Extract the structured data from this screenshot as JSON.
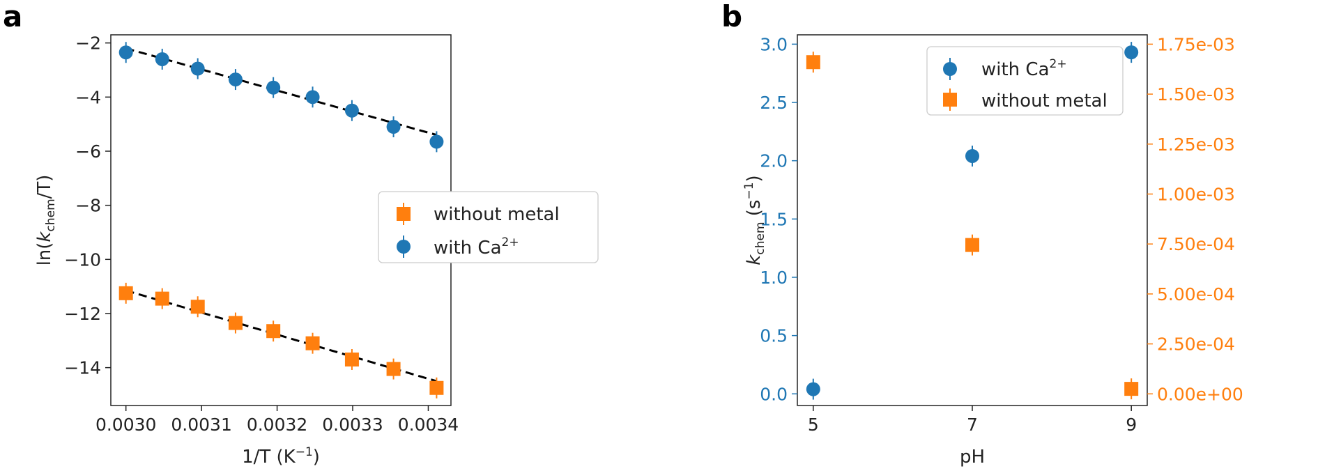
{
  "colors": {
    "ca": "#1f77b4",
    "metal_free": "#ff7f0e",
    "fit": "#000000",
    "axes": "#222222"
  },
  "chart_data": [
    {
      "panel": "a",
      "type": "scatter",
      "xlabel_prefix": "1/T (K",
      "xlabel_sup": "−1",
      "xlabel_suffix": ")",
      "ylabel_prefix": "ln(",
      "ylabel_k": "k",
      "ylabel_sub": "chem",
      "ylabel_suffix": "/T)",
      "xlim": [
        0.00298,
        0.00343
      ],
      "ylim": [
        -15.4,
        -1.7
      ],
      "xticks": [
        0.003,
        0.0031,
        0.0032,
        0.0033,
        0.0034
      ],
      "xtick_labels": [
        "0.0030",
        "0.0031",
        "0.0032",
        "0.0033",
        "0.0034"
      ],
      "yticks": [
        -14,
        -12,
        -10,
        -8,
        -6,
        -4,
        -2
      ],
      "ytick_labels": [
        "−14",
        "−12",
        "−10",
        "−8",
        "−6",
        "−4",
        "−2"
      ],
      "legend": {
        "position": "center-right"
      },
      "series": [
        {
          "name": "without metal",
          "marker": "square",
          "color": "#ff7f0e",
          "x": [
            0.003,
            0.003048,
            0.003095,
            0.003145,
            0.003195,
            0.003247,
            0.003299,
            0.003354,
            0.003411
          ],
          "y": [
            -11.25,
            -11.45,
            -11.75,
            -12.35,
            -12.65,
            -13.1,
            -13.7,
            -14.05,
            -14.75
          ],
          "fit": {
            "x": [
              0.003,
              0.003411
            ],
            "y": [
              -11.15,
              -14.5
            ]
          }
        },
        {
          "name_prefix": "with Ca",
          "name_sup": "2+",
          "marker": "circle",
          "color": "#1f77b4",
          "x": [
            0.003,
            0.003048,
            0.003095,
            0.003145,
            0.003195,
            0.003247,
            0.003299,
            0.003354,
            0.003411
          ],
          "y": [
            -2.35,
            -2.6,
            -2.95,
            -3.35,
            -3.65,
            -4.0,
            -4.5,
            -5.1,
            -5.65
          ],
          "fit": {
            "x": [
              0.003,
              0.003411
            ],
            "y": [
              -2.2,
              -5.4
            ]
          }
        }
      ]
    },
    {
      "panel": "b",
      "type": "scatter",
      "xlabel": "pH",
      "ylabel_k": "k",
      "ylabel_sub": "chem",
      "ylabel_unit_prefix": " (s",
      "ylabel_unit_sup": "−1",
      "ylabel_unit_suffix": ")",
      "xlim": [
        4.8,
        9.2
      ],
      "ylim_left": [
        -0.1,
        3.08
      ],
      "ylim_right": [
        -5.83e-05,
        0.0017967
      ],
      "xticks": [
        5,
        7,
        9
      ],
      "xtick_labels": [
        "5",
        "7",
        "9"
      ],
      "yticks_left": [
        0.0,
        0.5,
        1.0,
        1.5,
        2.0,
        2.5,
        3.0
      ],
      "ytick_labels_left": [
        "0.0",
        "0.5",
        "1.0",
        "1.5",
        "2.0",
        "2.5",
        "3.0"
      ],
      "yticks_right": [
        0,
        0.00025,
        0.0005,
        0.00075,
        0.001,
        0.00125,
        0.0015,
        0.00175
      ],
      "ytick_labels_right": [
        "0.00e+00",
        "2.50e-04",
        "5.00e-04",
        "7.50e-04",
        "1.00e-03",
        "1.25e-03",
        "1.50e-03",
        "1.75e-03"
      ],
      "legend": {
        "position": "top-center"
      },
      "series": [
        {
          "name_prefix": "with Ca",
          "name_sup": "2+",
          "marker": "circle",
          "color": "#1f77b4",
          "axis": "left",
          "x": [
            5,
            7,
            9
          ],
          "y": [
            0.04,
            2.04,
            2.93
          ]
        },
        {
          "name": "without metal",
          "marker": "square",
          "color": "#ff7f0e",
          "axis": "right",
          "x": [
            5,
            7,
            9
          ],
          "y": [
            0.00166,
            0.000745,
            2.5e-05
          ]
        }
      ]
    }
  ],
  "panel_letters": [
    "a",
    "b"
  ]
}
